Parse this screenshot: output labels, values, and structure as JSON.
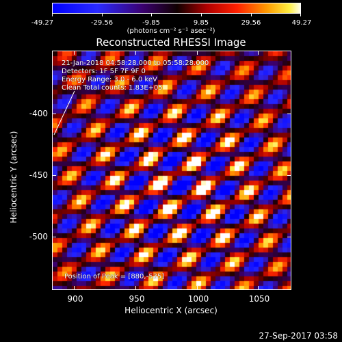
{
  "colorbar": {
    "ticks": [
      "-49.27",
      "-29.56",
      "-9.85",
      "9.85",
      "29.56",
      "49.27"
    ],
    "units": "(photons cm⁻² s⁻¹ asec⁻²)"
  },
  "image": {
    "title": "Reconstructed RHESSI Image",
    "time_range": "21-Jan-2018 04:58:28.000 to 05:58:28.000",
    "detectors": "Detectors: 1F 5F 7F 9F 0",
    "energy_range": "Energy Range: 3.0 - 6.0 keV",
    "clean": "Clean    Total counts: 1.83E+05",
    "peak": "Position of Peak = [880,-535]"
  },
  "axes": {
    "xlabel": "Heliocentric X (arcsec)",
    "ylabel": "Heliocentric Y (arcsec)",
    "xticks": [
      "900",
      "950",
      "1000",
      "1050"
    ],
    "yticks": [
      "-400",
      "-450",
      "-500"
    ]
  },
  "footer": {
    "date": "27-Sep-2017 03:58"
  }
}
